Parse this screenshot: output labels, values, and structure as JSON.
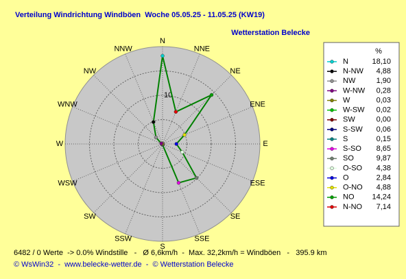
{
  "chart_data": {
    "type": "radar",
    "title": "Verteilung Windrichtung Windböen  Woche 05.05.25 - 11.05.25 (KW19)",
    "subtitle": "Wetterstation Belecke",
    "categories": [
      "N",
      "NNE",
      "NE",
      "ENE",
      "E",
      "ESE",
      "SE",
      "SSE",
      "S",
      "SSW",
      "SW",
      "WSW",
      "W",
      "WNW",
      "NW",
      "NNW"
    ],
    "rlim": [
      0,
      20
    ],
    "rgrid": [
      5,
      10,
      15
    ],
    "rticks": [
      10
    ],
    "line_color": "#008000",
    "legend_title": "%",
    "series": [
      {
        "name": "N",
        "color": "#00d0d0",
        "value": 18.1,
        "value_label": "18,10"
      },
      {
        "name": "N-NW",
        "color": "#000000",
        "value": 4.88,
        "value_label": "4,88"
      },
      {
        "name": "NW",
        "color": "#909090",
        "value": 1.9,
        "value_label": "1,90"
      },
      {
        "name": "W-NW",
        "color": "#800080",
        "value": 0.28,
        "value_label": "0,28"
      },
      {
        "name": "W",
        "color": "#808000",
        "value": 0.03,
        "value_label": "0,03"
      },
      {
        "name": "W-SW",
        "color": "#00c000",
        "value": 0.02,
        "value_label": "0,02"
      },
      {
        "name": "SW",
        "color": "#800000",
        "value": 0.0,
        "value_label": "0,00"
      },
      {
        "name": "S-SW",
        "color": "#000080",
        "value": 0.06,
        "value_label": "0,06"
      },
      {
        "name": "S",
        "color": "#008080",
        "value": 0.15,
        "value_label": "0,15"
      },
      {
        "name": "S-SO",
        "color": "#e000e0",
        "value": 8.65,
        "value_label": "8,65"
      },
      {
        "name": "SO",
        "color": "#708070",
        "value": 9.87,
        "value_label": "9,87"
      },
      {
        "name": "O-SO",
        "color": "#e0ffe0",
        "value": 4.38,
        "value_label": "4,38"
      },
      {
        "name": "O",
        "color": "#0000e0",
        "value": 2.84,
        "value_label": "2,84"
      },
      {
        "name": "O-NO",
        "color": "#e0e000",
        "value": 4.88,
        "value_label": "4,88"
      },
      {
        "name": "NO",
        "color": "#00a000",
        "value": 14.24,
        "value_label": "14,24"
      },
      {
        "name": "N-NO",
        "color": "#e00000",
        "value": 7.14,
        "value_label": "7,14"
      }
    ],
    "footer": "6482 / 0 Werte  -> 0.0% Windstille   -   Ø 6,6km/h  -  Max. 32,2km/h = Windböen   -   395.9 km",
    "credits": "© WsWin32  -  www.belecke-wetter.de  -  © Wetterstation Belecke"
  }
}
